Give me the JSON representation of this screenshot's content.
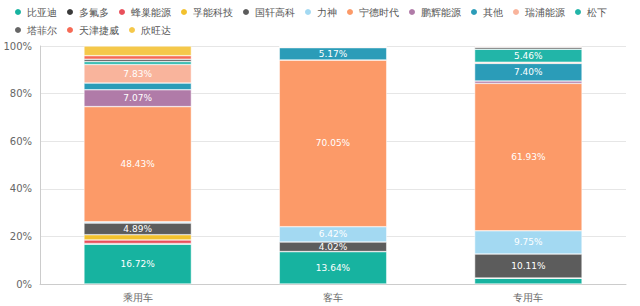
{
  "chart_data": {
    "type": "bar",
    "stacked": true,
    "legend": "top",
    "grid": true,
    "data_labels": true,
    "categories": [
      "乘用车",
      "客车",
      "专用车"
    ],
    "ylim": [
      0,
      100
    ],
    "yticks": [
      {
        "value": 0,
        "label": "0%"
      },
      {
        "value": 20,
        "label": "20%"
      },
      {
        "value": 40,
        "label": "40%"
      },
      {
        "value": 60,
        "label": "60%"
      },
      {
        "value": 80,
        "label": "80%"
      },
      {
        "value": 100,
        "label": "100%"
      }
    ],
    "series": [
      {
        "name": "比亚迪",
        "color": "#17b3a0",
        "values": [
          16.72,
          13.64,
          2.5
        ],
        "value_labels": [
          "16.72%",
          "13.64%",
          null
        ]
      },
      {
        "name": "多氟多",
        "color": "#3a3a3a",
        "values": [
          0.3,
          0,
          0
        ],
        "value_labels": [
          null,
          null,
          null
        ]
      },
      {
        "name": "蜂巢能源",
        "color": "#e8505b",
        "values": [
          1.5,
          0,
          0
        ],
        "value_labels": [
          null,
          null,
          null
        ]
      },
      {
        "name": "孚能科技",
        "color": "#f2c12e",
        "values": [
          2.2,
          0,
          0
        ],
        "value_labels": [
          null,
          null,
          null
        ]
      },
      {
        "name": "国轩高科",
        "color": "#5c5c5c",
        "values": [
          4.89,
          4.02,
          10.11
        ],
        "value_labels": [
          "4.89%",
          "4.02%",
          "10.11%"
        ]
      },
      {
        "name": "力神",
        "color": "#a3d9f2",
        "values": [
          0.5,
          6.42,
          9.75
        ],
        "value_labels": [
          null,
          "6.42%",
          "9.75%"
        ]
      },
      {
        "name": "宁德时代",
        "color": "#fc9a68",
        "values": [
          48.43,
          70.05,
          61.93
        ],
        "value_labels": [
          "48.43%",
          "70.05%",
          "61.93%"
        ]
      },
      {
        "name": "鹏辉能源",
        "color": "#b07ba8",
        "values": [
          7.07,
          0,
          1.0
        ],
        "value_labels": [
          "7.07%",
          null,
          null
        ]
      },
      {
        "name": "其他",
        "color": "#2b9cb8",
        "values": [
          2.8,
          5.17,
          7.4
        ],
        "value_labels": [
          null,
          "5.17%",
          "7.40%"
        ]
      },
      {
        "name": "瑞浦能源",
        "color": "#f9b49c",
        "values": [
          7.83,
          0.3,
          0.5
        ],
        "value_labels": [
          "7.83%",
          null,
          null
        ]
      },
      {
        "name": "松下",
        "color": "#22b5a8",
        "values": [
          1.2,
          0,
          5.46
        ],
        "value_labels": [
          null,
          null,
          "5.46%"
        ]
      },
      {
        "name": "塔菲尔",
        "color": "#666666",
        "values": [
          1.0,
          0.2,
          0.8
        ],
        "value_labels": [
          null,
          null,
          null
        ]
      },
      {
        "name": "天津捷威",
        "color": "#f66a55",
        "values": [
          1.5,
          0.2,
          0.3
        ],
        "value_labels": [
          null,
          null,
          null
        ]
      },
      {
        "name": "欣旺达",
        "color": "#f5c84a",
        "values": [
          4.06,
          0,
          0.25
        ],
        "value_labels": [
          null,
          null,
          null
        ]
      }
    ]
  }
}
